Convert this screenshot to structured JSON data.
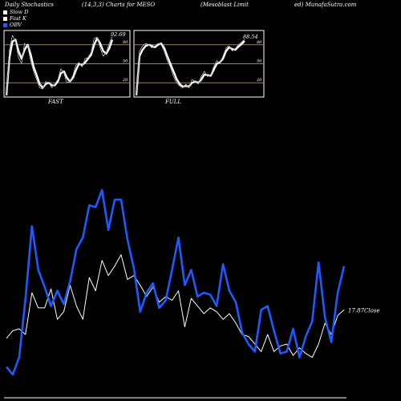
{
  "header": {
    "left": "Daily Stochastics",
    "params": "(14,3,3) Charts for MESO",
    "company": "(Mesoblast Limit",
    "source": "ed) MunafaSutra.com"
  },
  "legend": [
    {
      "label": "Slow  D",
      "color": "#ffffff"
    },
    {
      "label": "Fast K",
      "color": "#ffffff"
    },
    {
      "label": "OBV",
      "color": "#1e5bff"
    }
  ],
  "panels": [
    {
      "label": "FAST",
      "last_value": "92.69"
    },
    {
      "label": "FULL",
      "last_value": "88.54"
    }
  ],
  "close_label": "17.87Close",
  "chart_data": [
    {
      "type": "line",
      "name": "FAST stochastic panel",
      "ylim": [
        0,
        100
      ],
      "yticks": [
        "80",
        "50",
        "20"
      ],
      "levels": [
        80,
        50,
        20
      ],
      "series": [
        {
          "name": "Fast K",
          "values": [
            0,
            72,
            95,
            85,
            60,
            50,
            82,
            78,
            55,
            38,
            25,
            12,
            10,
            22,
            20,
            12,
            18,
            25,
            42,
            35,
            20,
            22,
            32,
            48,
            52,
            45,
            58,
            60,
            68,
            90,
            92,
            75,
            62,
            68,
            82,
            92.69
          ]
        },
        {
          "name": "Slow D",
          "values": [
            0,
            60,
            85,
            88,
            70,
            58,
            72,
            80,
            65,
            45,
            32,
            18,
            12,
            18,
            20,
            16,
            16,
            22,
            35,
            38,
            28,
            22,
            28,
            40,
            50,
            48,
            52,
            58,
            64,
            80,
            90,
            82,
            70,
            66,
            74,
            88
          ]
        }
      ]
    },
    {
      "type": "line",
      "name": "FULL stochastic panel",
      "ylim": [
        0,
        100
      ],
      "yticks": [
        "80",
        "50",
        "20"
      ],
      "levels": [
        80,
        50,
        20
      ],
      "series": [
        {
          "name": "Fast K",
          "values": [
            0,
            70,
            78,
            82,
            80,
            75,
            78,
            82,
            80,
            70,
            55,
            45,
            30,
            20,
            15,
            12,
            18,
            12,
            25,
            22,
            18,
            30,
            38,
            30,
            32,
            45,
            55,
            50,
            62,
            75,
            78,
            70,
            74,
            80,
            84,
            88.54
          ]
        },
        {
          "name": "Slow D",
          "values": [
            0,
            62,
            72,
            78,
            80,
            78,
            76,
            80,
            82,
            75,
            62,
            50,
            38,
            26,
            18,
            14,
            15,
            14,
            20,
            22,
            20,
            25,
            33,
            32,
            31,
            40,
            50,
            52,
            58,
            70,
            76,
            73,
            72,
            77,
            81,
            86
          ]
        }
      ]
    },
    {
      "type": "line",
      "name": "Price and OBV panel",
      "ylim": [
        0,
        100
      ],
      "series": [
        {
          "name": "OBV",
          "color": "#1e5bff",
          "values": [
            7,
            3,
            12,
            43,
            81,
            58,
            49,
            39,
            47,
            40,
            52,
            69,
            75,
            92,
            91,
            100,
            79,
            95,
            95,
            74,
            59,
            36,
            46,
            51,
            38,
            42,
            58,
            75,
            50,
            58,
            44,
            46,
            45,
            39,
            61,
            47,
            41,
            25,
            19,
            15,
            37,
            39,
            26,
            14,
            15,
            27,
            12,
            23,
            31,
            62,
            33,
            20,
            46,
            60
          ]
        },
        {
          "name": "Close",
          "color": "#ffffff",
          "values": [
            22,
            26,
            27,
            24,
            46,
            38,
            38,
            48,
            32,
            36,
            50,
            39,
            32,
            54,
            47,
            63,
            55,
            60,
            66,
            53,
            55,
            50,
            44,
            49,
            41,
            44,
            42,
            47,
            28,
            43,
            39,
            35,
            38,
            36,
            32,
            35,
            30,
            24,
            23,
            19,
            15,
            24,
            15,
            18,
            19,
            13,
            17,
            14,
            12,
            19,
            30,
            24,
            34,
            37
          ]
        }
      ]
    }
  ]
}
